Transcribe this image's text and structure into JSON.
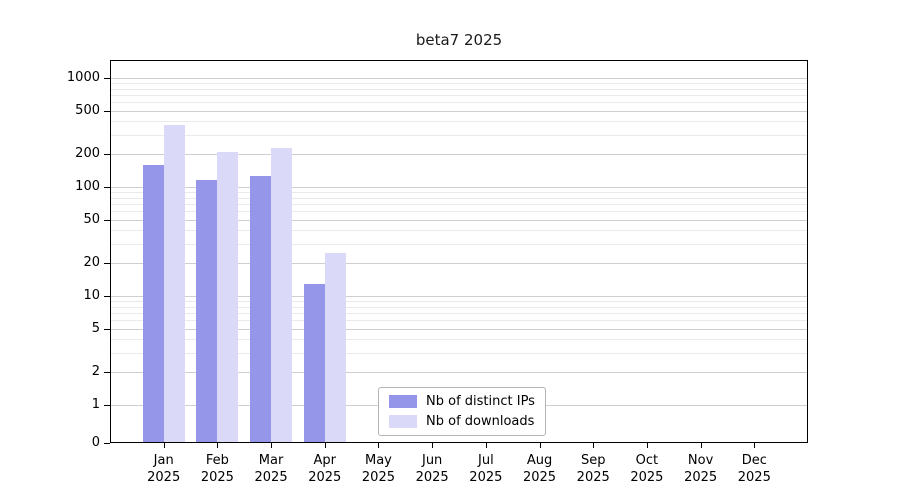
{
  "chart_data": {
    "type": "bar",
    "title": "beta7 2025",
    "categories": [
      "Jan 2025",
      "Feb 2025",
      "Mar 2025",
      "Apr 2025",
      "May 2025",
      "Jun 2025",
      "Jul 2025",
      "Aug 2025",
      "Sep 2025",
      "Oct 2025",
      "Nov 2025",
      "Dec 2025"
    ],
    "series": [
      {
        "name": "Nb of distinct IPs",
        "color": "#9595ea",
        "values": [
          160,
          115,
          125,
          13,
          0,
          0,
          0,
          0,
          0,
          0,
          0,
          0
        ]
      },
      {
        "name": "Nb of downloads",
        "color": "#dadaf8",
        "values": [
          370,
          210,
          230,
          25,
          0,
          0,
          0,
          0,
          0,
          0,
          0,
          0
        ]
      }
    ],
    "yscale": "symlog",
    "yticks": [
      0,
      1,
      2,
      5,
      10,
      20,
      50,
      100,
      200,
      500,
      1000
    ],
    "ylim": [
      0,
      1400
    ],
    "xlabel": "",
    "ylabel": "",
    "grid": true,
    "legend_position": "lower center",
    "colors": {
      "grid_major": "#cfcfcf",
      "grid_minor": "#eaeaea",
      "axis": "#000000",
      "background": "#ffffff",
      "legend_border": "#b3b3b3"
    }
  }
}
